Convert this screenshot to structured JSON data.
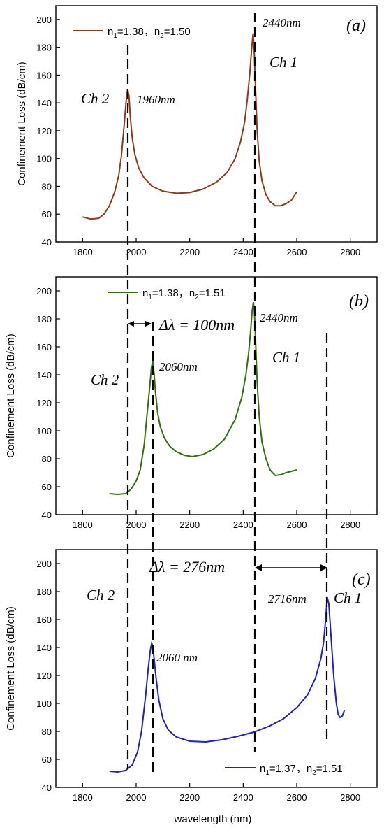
{
  "chart_data": [
    {
      "type": "line",
      "panel_label": "(a)",
      "ylabel": "Confinement  Loss (dB/cm)",
      "xlabel": "",
      "xlim": [
        1700,
        2900
      ],
      "ylim": [
        40,
        210
      ],
      "xticks": [
        1800,
        2000,
        2200,
        2400,
        2600,
        2800
      ],
      "yticks": [
        40,
        60,
        80,
        100,
        120,
        140,
        160,
        180,
        200
      ],
      "legend": {
        "position": "top-left",
        "n1": "1.38",
        "n2": "1.50"
      },
      "series": [
        {
          "color": "#8b3a1e",
          "x": [
            1800,
            1830,
            1860,
            1880,
            1900,
            1920,
            1935,
            1945,
            1955,
            1962,
            1968,
            1973,
            1978,
            1985,
            1995,
            2010,
            2030,
            2060,
            2100,
            2150,
            2200,
            2250,
            2300,
            2340,
            2370,
            2390,
            2405,
            2415,
            2425,
            2432,
            2437,
            2441,
            2446,
            2452,
            2460,
            2470,
            2485,
            2500,
            2520,
            2540,
            2560,
            2580,
            2600
          ],
          "y": [
            58,
            56.5,
            57,
            60,
            66,
            76,
            88,
            102,
            124,
            140,
            150,
            145,
            130,
            115,
            103,
            93,
            86,
            80,
            76.5,
            75,
            75.5,
            78,
            83,
            90,
            100,
            112,
            126,
            142,
            162,
            180,
            190,
            178,
            150,
            120,
            98,
            84,
            74,
            69,
            66,
            66,
            67.5,
            70,
            76
          ]
        }
      ],
      "annotations": {
        "peak_left_channel": "Ch 2",
        "peak_left_wavelength": "1960nm",
        "peak_right_channel": "Ch 1",
        "peak_right_wavelength": "2440nm"
      }
    },
    {
      "type": "line",
      "panel_label": "(b)",
      "ylabel": "Confinement  Loss (dB/cm)",
      "xlabel": "",
      "xlim": [
        1700,
        2900
      ],
      "ylim": [
        40,
        210
      ],
      "xticks": [
        1800,
        2000,
        2200,
        2400,
        2600,
        2800
      ],
      "yticks": [
        40,
        60,
        80,
        100,
        120,
        140,
        160,
        180,
        200
      ],
      "legend": {
        "position": "top-left",
        "n1": "1.38",
        "n2": "1.51"
      },
      "series": [
        {
          "color": "#3a6b12",
          "x": [
            1900,
            1930,
            1960,
            1980,
            2000,
            2015,
            2030,
            2040,
            2050,
            2057,
            2062,
            2066,
            2072,
            2080,
            2090,
            2105,
            2125,
            2150,
            2180,
            2210,
            2250,
            2290,
            2330,
            2370,
            2395,
            2410,
            2420,
            2428,
            2433,
            2438,
            2442,
            2446,
            2452,
            2460,
            2470,
            2485,
            2500,
            2520,
            2540,
            2560,
            2580,
            2600
          ],
          "y": [
            55,
            54.5,
            55,
            58,
            64,
            72,
            90,
            110,
            130,
            145,
            150,
            143,
            128,
            113,
            103,
            95,
            89,
            85,
            82.5,
            81.5,
            83,
            87,
            94,
            108,
            124,
            140,
            155,
            172,
            185,
            192,
            185,
            165,
            135,
            110,
            92,
            80,
            72,
            68,
            68.5,
            70,
            71,
            72
          ]
        }
      ],
      "annotations": {
        "delta": "Δλ = 100nm",
        "peak_left_channel": "Ch 2",
        "peak_left_wavelength": "2060nm",
        "peak_right_channel": "Ch 1",
        "peak_right_wavelength": "2440nm"
      }
    },
    {
      "type": "line",
      "panel_label": "(c)",
      "ylabel": "Confinement  Loss (dB/cm)",
      "xlabel": "wavelength (nm)",
      "xlim": [
        1700,
        2900
      ],
      "ylim": [
        40,
        210
      ],
      "xticks": [
        1800,
        2000,
        2200,
        2400,
        2600,
        2800
      ],
      "yticks": [
        40,
        60,
        80,
        100,
        120,
        140,
        160,
        180,
        200
      ],
      "legend": {
        "position": "bottom-right",
        "n1": "1.37",
        "n2": "1.51"
      },
      "series": [
        {
          "color": "#2020c0",
          "x": [
            1900,
            1930,
            1960,
            1985,
            2005,
            2020,
            2035,
            2045,
            2053,
            2058,
            2062,
            2067,
            2075,
            2085,
            2100,
            2120,
            2150,
            2200,
            2260,
            2320,
            2380,
            2440,
            2500,
            2550,
            2600,
            2640,
            2670,
            2690,
            2700,
            2708,
            2714,
            2720,
            2728,
            2738,
            2748,
            2755,
            2762,
            2770,
            2778
          ],
          "y": [
            51.5,
            51,
            52,
            56,
            65,
            80,
            105,
            125,
            138,
            143,
            141,
            132,
            117,
            102,
            89,
            81,
            76,
            73,
            72.5,
            74,
            76.5,
            79.5,
            84,
            89,
            97,
            106,
            118,
            132,
            143,
            160,
            176,
            171,
            148,
            120,
            100,
            92,
            90,
            91,
            95
          ]
        }
      ],
      "annotations": {
        "delta": "Δλ = 276nm",
        "peak_left_channel": "Ch 2",
        "peak_left_wavelength": "2060 nm",
        "peak_right_channel": "Ch 1",
        "peak_right_wavelength": "2716nm"
      }
    }
  ]
}
